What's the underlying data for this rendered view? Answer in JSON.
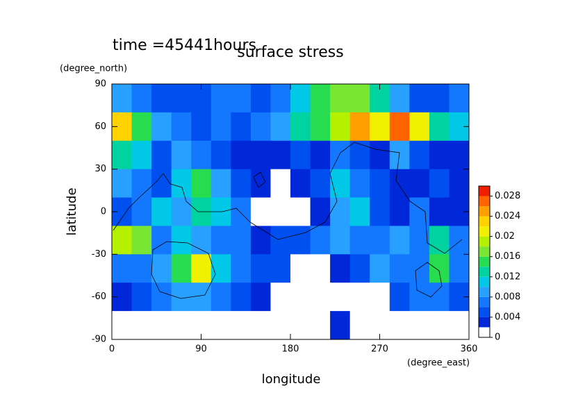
{
  "chart_data": {
    "type": "contour",
    "title": "surface stress",
    "subtitle": "time =45441hours",
    "x_label": "longitude",
    "x_units": "(degree_east)",
    "y_label": "latitude",
    "y_units": "(degree_north)",
    "xlim": [
      0,
      360
    ],
    "xticks": [
      0,
      90,
      180,
      270,
      360
    ],
    "ylim": [
      -90,
      90
    ],
    "yticks": [
      -90,
      -60,
      -30,
      0,
      30,
      60,
      90
    ],
    "z": [
      [
        0.008,
        0.006,
        0.005,
        0.004,
        0.005,
        0.006,
        0.006,
        0.005,
        0.006,
        0.01,
        0.014,
        0.016,
        0.016,
        0.012,
        0.008,
        0.005,
        0.005,
        0.006
      ],
      [
        0.022,
        0.014,
        0.008,
        0.006,
        0.005,
        0.006,
        0.005,
        0.006,
        0.008,
        0.012,
        0.014,
        0.018,
        0.024,
        0.02,
        0.026,
        0.02,
        0.012,
        0.01
      ],
      [
        0.012,
        0.01,
        0.004,
        0.008,
        0.006,
        0.004,
        0.002,
        0.003,
        0.002,
        0.004,
        0.003,
        0.006,
        0.004,
        0.003,
        0.008,
        0.004,
        0.002,
        0.003
      ],
      [
        0.008,
        0.006,
        0.004,
        0.01,
        0.014,
        0.008,
        0.004,
        0.003,
        0.001,
        0.003,
        0.004,
        0.01,
        0.006,
        0.004,
        0.003,
        0.002,
        0.005,
        0.003
      ],
      [
        0.004,
        0.006,
        0.01,
        0.008,
        0.012,
        0.01,
        0.006,
        0.001,
        0.001,
        0.001,
        0.002,
        0.008,
        0.01,
        0.004,
        0.003,
        0.006,
        0.003,
        0.002
      ],
      [
        0.018,
        0.016,
        0.006,
        0.01,
        0.008,
        0.006,
        0.006,
        0.003,
        0.004,
        0.005,
        0.006,
        0.008,
        0.006,
        0.006,
        0.008,
        0.006,
        0.012,
        0.006
      ],
      [
        0.006,
        0.006,
        0.008,
        0.014,
        0.02,
        0.01,
        0.006,
        0.005,
        0.004,
        0.001,
        0.001,
        0.002,
        0.004,
        0.008,
        0.006,
        0.006,
        0.014,
        0.006
      ],
      [
        0.003,
        0.004,
        0.006,
        0.008,
        0.008,
        0.006,
        0.004,
        0.002,
        0.001,
        0.001,
        0.001,
        0.001,
        0.001,
        0.001,
        0.004,
        0.006,
        0.006,
        0.004
      ],
      [
        0.001,
        0.001,
        0.001,
        0.001,
        0.001,
        0.001,
        0.001,
        0.001,
        0.001,
        0.001,
        0.001,
        0.002,
        0.001,
        0.001,
        0.001,
        0.001,
        0.001,
        0.001
      ]
    ],
    "levels": [
      0,
      0.002,
      0.004,
      0.006,
      0.008,
      0.01,
      0.012,
      0.014,
      0.016,
      0.018,
      0.02,
      0.022,
      0.024,
      0.026,
      0.028,
      0.03
    ],
    "colors": [
      "#ffffff",
      "#0028d8",
      "#0050f0",
      "#1478ff",
      "#28a0ff",
      "#00c8e6",
      "#00d2a0",
      "#28dc50",
      "#78e632",
      "#b4f000",
      "#f0f000",
      "#ffd200",
      "#ffa000",
      "#ff6400",
      "#f01e00"
    ],
    "colorbar_ticks": [
      0,
      0.004,
      0.008,
      0.012,
      0.016,
      0.02,
      0.024,
      0.028
    ]
  }
}
